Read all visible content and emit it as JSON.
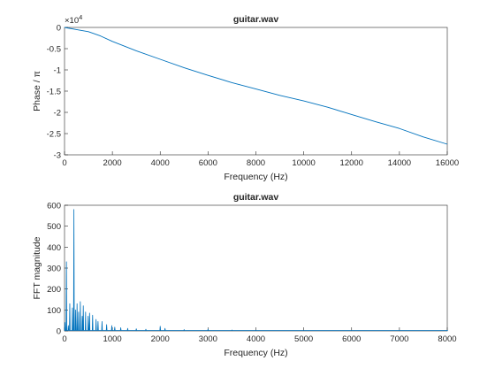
{
  "chart_data": [
    {
      "type": "line",
      "title": "guitar.wav",
      "xlabel": "Frequency (Hz)",
      "ylabel": "Phase / π",
      "exponent_label": "×10",
      "exponent_power": "4",
      "xlim": [
        0,
        16000
      ],
      "ylim": [
        -3,
        0
      ],
      "xticks": [
        0,
        2000,
        4000,
        6000,
        8000,
        10000,
        12000,
        14000,
        16000
      ],
      "yticks": [
        0,
        -0.5,
        -1,
        -1.5,
        -2,
        -2.5,
        -3
      ],
      "ytick_labels": [
        "0",
        "-0.5",
        "-1",
        "-1.5",
        "-2",
        "-2.5",
        "-3"
      ],
      "grid": false,
      "line_color": "#0072BD",
      "series": [
        {
          "x": [
            0,
            500,
            1000,
            1500,
            2000,
            3000,
            4000,
            5000,
            6000,
            7000,
            8000,
            9000,
            10000,
            11000,
            12000,
            13000,
            14000,
            15000,
            16000
          ],
          "y": [
            0,
            -0.05,
            -0.1,
            -0.2,
            -0.33,
            -0.55,
            -0.75,
            -0.95,
            -1.13,
            -1.3,
            -1.45,
            -1.6,
            -1.73,
            -1.88,
            -2.05,
            -2.22,
            -2.38,
            -2.58,
            -2.75
          ]
        }
      ]
    },
    {
      "type": "line",
      "title": "guitar.wav",
      "xlabel": "Frequency   (Hz)",
      "ylabel": "FFT magnitude",
      "xlim": [
        0,
        8000
      ],
      "ylim": [
        0,
        600
      ],
      "xticks": [
        0,
        1000,
        2000,
        3000,
        4000,
        5000,
        6000,
        7000,
        8000
      ],
      "yticks": [
        0,
        100,
        200,
        300,
        400,
        500,
        600
      ],
      "grid": false,
      "line_color": "#0072BD",
      "series": [
        {
          "x": [
            10,
            40,
            80,
            110,
            165,
            196,
            230,
            262,
            294,
            330,
            370,
            392,
            440,
            494,
            523,
            587,
            659,
            700,
            784,
            880,
            988,
            1050,
            1175,
            1320,
            1500,
            1700,
            2000,
            2100,
            2500,
            3000,
            3500,
            4000,
            5000,
            6000,
            7000,
            8000
          ],
          "y": [
            40,
            330,
            25,
            130,
            110,
            580,
            100,
            130,
            90,
            140,
            70,
            120,
            90,
            70,
            85,
            75,
            55,
            45,
            45,
            30,
            25,
            18,
            15,
            12,
            10,
            8,
            22,
            12,
            6,
            8,
            4,
            3,
            2,
            2,
            1,
            1
          ]
        }
      ]
    }
  ]
}
